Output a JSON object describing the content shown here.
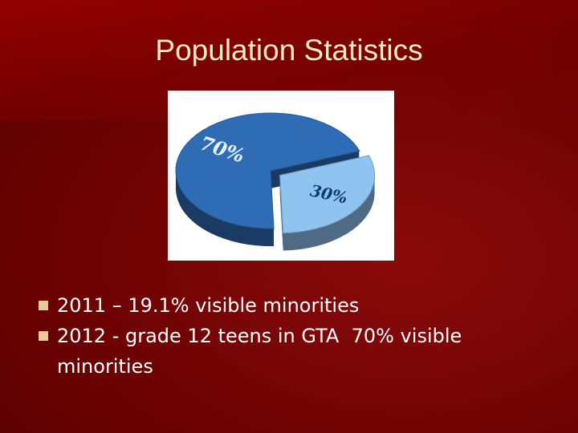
{
  "title": "Population Statistics",
  "bullets": [
    "2011 – 19.1% visible minorities",
    "2012 - grade 12 teens in GTA  70% visible minorities"
  ],
  "chart_data": {
    "type": "pie",
    "values": [
      70,
      30
    ],
    "value_labels": [
      "70%",
      "30%"
    ],
    "colors": [
      "#2e6cb5",
      "#8fc3f0"
    ]
  }
}
